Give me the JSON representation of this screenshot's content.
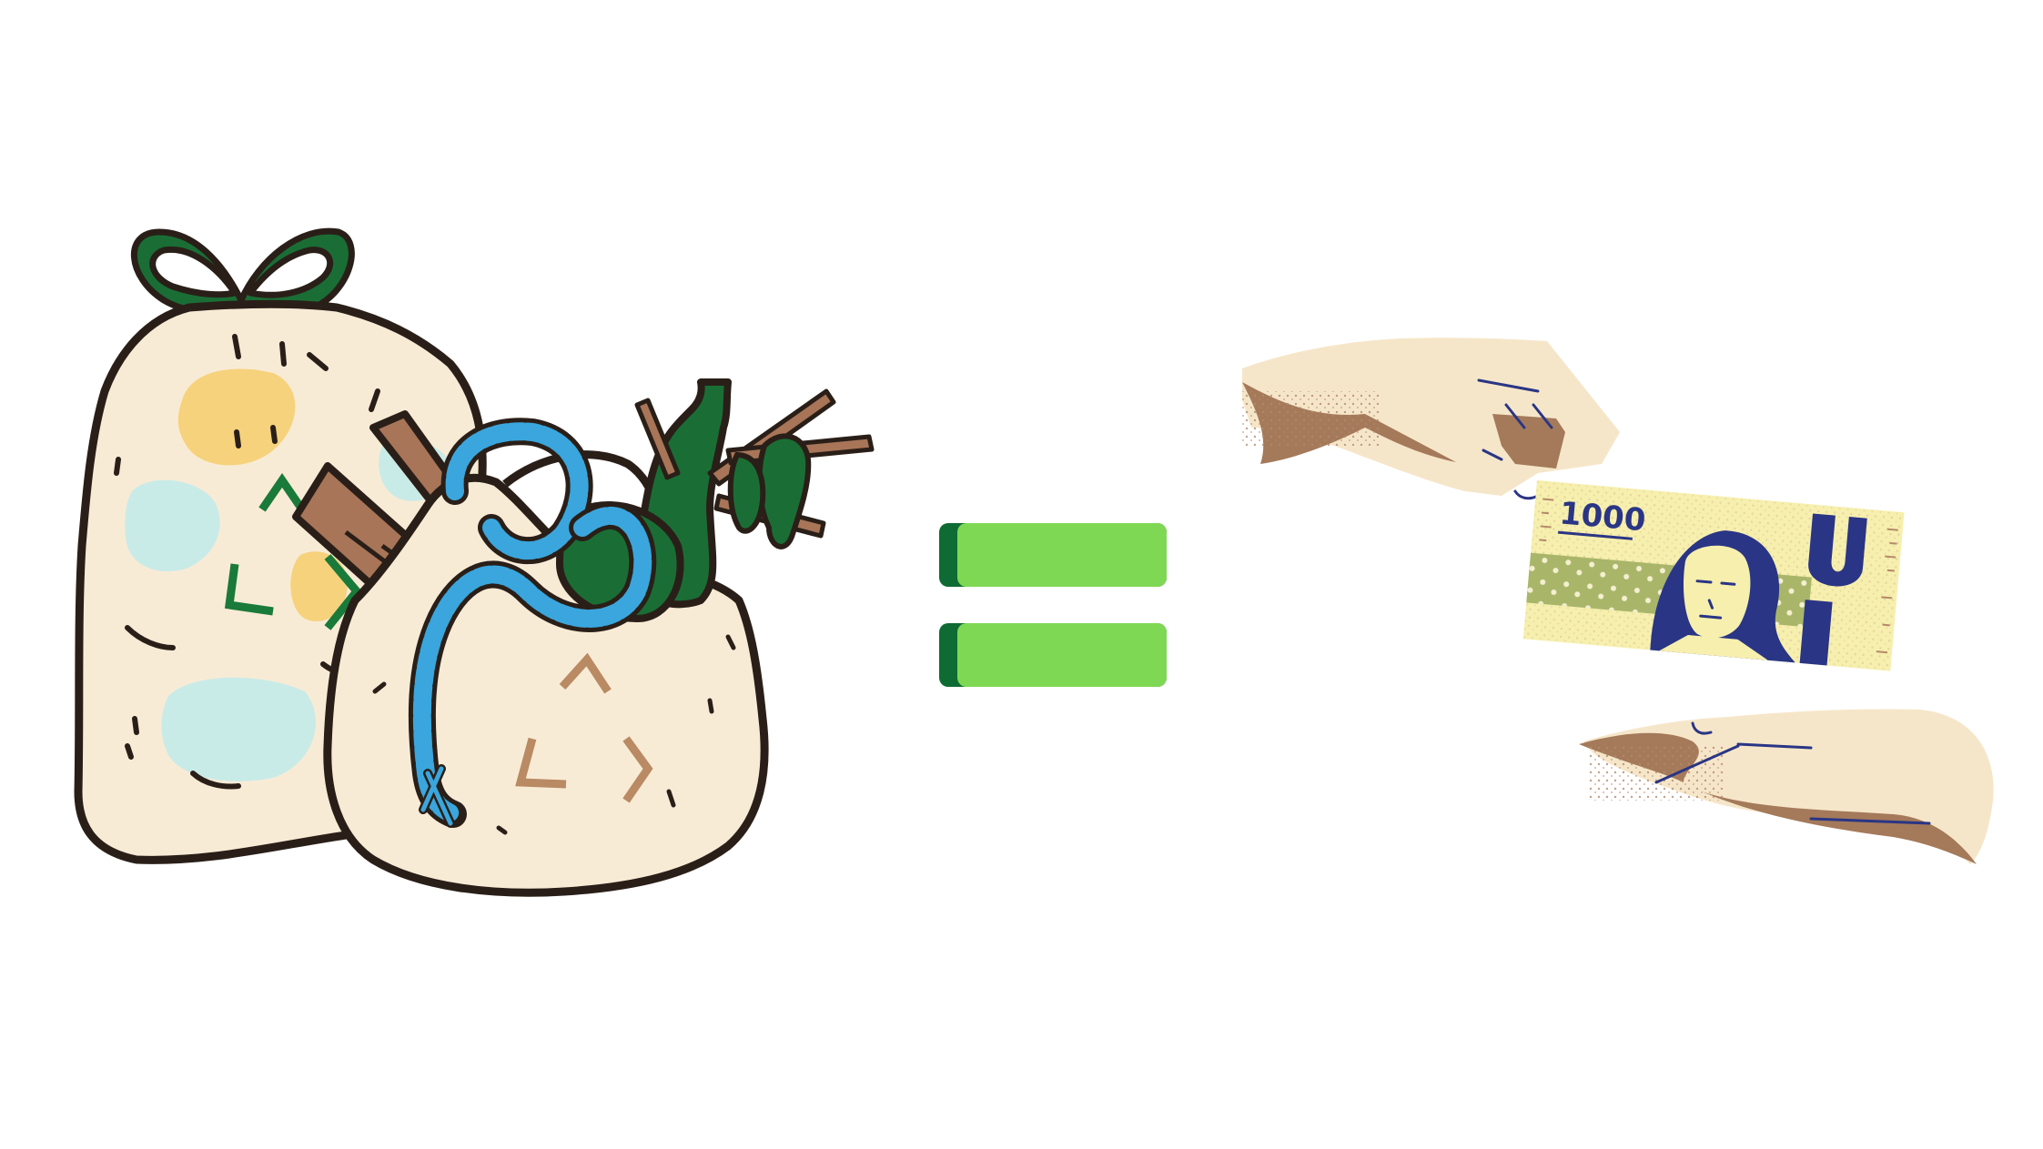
{
  "banknote": {
    "denomination": "1000"
  },
  "icons": [
    "recycling-bags-icon",
    "equals-sign-icon",
    "cash-handover-icon"
  ],
  "colors": {
    "bag_fill": "#f8ebd6",
    "outline": "#3a2a20",
    "recycle_green": "#1a7a3a",
    "recycle_brown": "#b98a63",
    "rope_blue": "#3aa6dd",
    "equals_light": "#7fd854",
    "equals_dark": "#0e6b34",
    "note_yellow": "#f6efae",
    "note_green": "#a9b66a",
    "note_navy": "#2a3585",
    "skin_light": "#f6e6c9",
    "skin_dark": "#a47a5a"
  }
}
